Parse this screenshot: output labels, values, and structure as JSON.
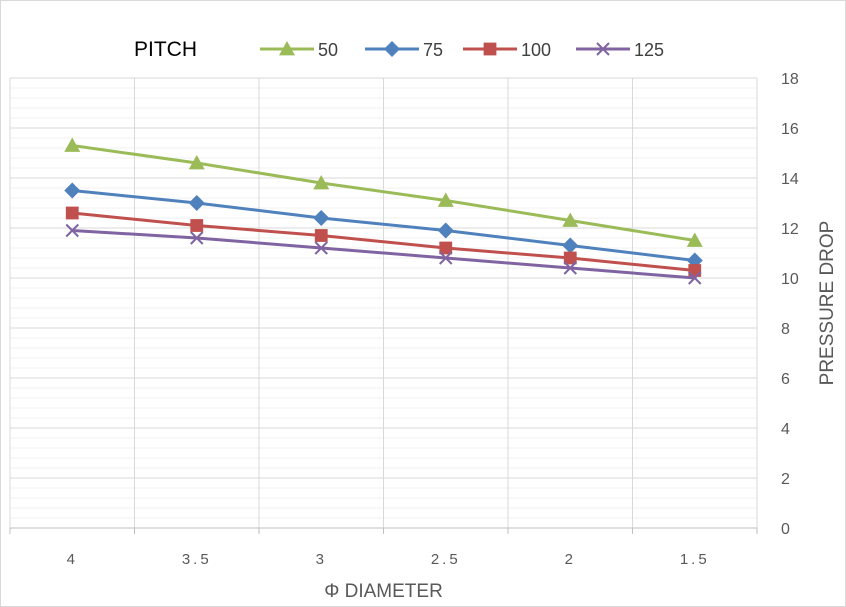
{
  "chart_data": {
    "type": "line",
    "legend_title": "PITCH",
    "legend_position": "top",
    "xlabel": "Φ DIAMETER",
    "ylabel": "PRESSURE DROP",
    "categories": [
      "4",
      "3.5",
      "3",
      "2.5",
      "2",
      "1.5"
    ],
    "x_tick_labels": [
      "4",
      "3.5",
      "3",
      "2.5",
      "2",
      "1.5"
    ],
    "ylim": [
      0,
      18
    ],
    "y_ticks": [
      "0",
      "2",
      "4",
      "6",
      "8",
      "10",
      "12",
      "14",
      "16",
      "18"
    ],
    "y_axis_side": "right",
    "grid": true,
    "series": [
      {
        "name": "50",
        "color": "#9bbb59",
        "marker": "triangle",
        "values": [
          15.3,
          14.6,
          13.8,
          13.1,
          12.3,
          11.5
        ]
      },
      {
        "name": "75",
        "color": "#4f81bd",
        "marker": "diamond",
        "values": [
          13.5,
          13.0,
          12.4,
          11.9,
          11.3,
          10.7
        ]
      },
      {
        "name": "100",
        "color": "#c0504d",
        "marker": "square",
        "values": [
          12.6,
          12.1,
          11.7,
          11.2,
          10.8,
          10.3
        ]
      },
      {
        "name": "125",
        "color": "#8064a2",
        "marker": "x",
        "values": [
          11.9,
          11.6,
          11.2,
          10.8,
          10.4,
          10.0
        ]
      }
    ]
  }
}
